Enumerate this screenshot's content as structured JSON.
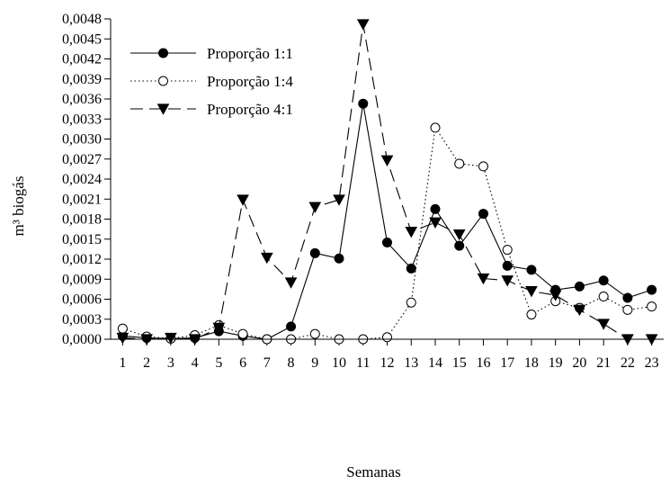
{
  "chart_data": {
    "type": "line",
    "xlabel": "Semanas",
    "ylabel": "m³ biogás",
    "x": [
      1,
      2,
      3,
      4,
      5,
      6,
      7,
      8,
      9,
      10,
      11,
      12,
      13,
      14,
      15,
      16,
      17,
      18,
      19,
      20,
      21,
      22,
      23
    ],
    "ylim": [
      0,
      0.0048
    ],
    "yticks": [
      "0,0000",
      "0,0003",
      "0,0006",
      "0,0009",
      "0,0012",
      "0,0015",
      "0,0018",
      "0,0021",
      "0,0024",
      "0,0027",
      "0,0030",
      "0,0033",
      "0,0036",
      "0,0039",
      "0,0042",
      "0,0045",
      "0,0048"
    ],
    "grid": false,
    "legend_position": "top-left",
    "series": [
      {
        "name": "Proporção 1:1",
        "marker": "filled-circle",
        "line_style": "solid",
        "values": [
          5e-05,
          2e-05,
          1e-05,
          2e-05,
          0.00012,
          5e-05,
          0.0,
          0.00019,
          0.00129,
          0.00121,
          0.00353,
          0.00145,
          0.00106,
          0.00195,
          0.0014,
          0.00188,
          0.0011,
          0.00104,
          0.00074,
          0.00079,
          0.00088,
          0.00062,
          0.00074
        ]
      },
      {
        "name": "Proporção 1:4",
        "marker": "open-circle",
        "line_style": "dotted",
        "values": [
          0.00016,
          4e-05,
          1e-05,
          6e-05,
          0.00021,
          8e-05,
          0.0,
          0.0,
          8e-05,
          0.0,
          0.0,
          3e-05,
          0.00055,
          0.00317,
          0.00263,
          0.00259,
          0.00134,
          0.00037,
          0.00057,
          0.00047,
          0.00064,
          0.00044,
          0.00049
        ]
      },
      {
        "name": "Proporção 4:1",
        "marker": "filled-triangle-down",
        "line_style": "dashed",
        "values": [
          2e-05,
          0.0,
          2e-05,
          0.0,
          0.00017,
          0.00209,
          0.00122,
          0.00085,
          0.00198,
          0.00209,
          0.00472,
          0.00268,
          0.00161,
          0.00175,
          0.00157,
          0.00091,
          0.00088,
          0.00072,
          0.00066,
          0.00044,
          0.00023,
          0.0,
          0.0
        ]
      }
    ]
  }
}
